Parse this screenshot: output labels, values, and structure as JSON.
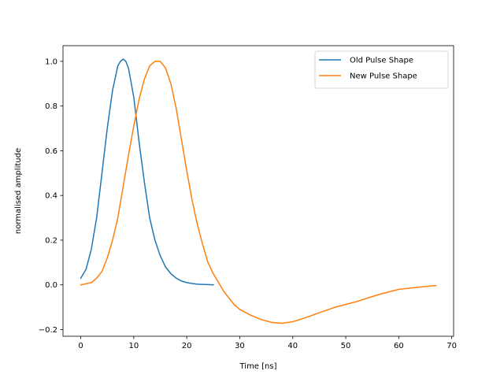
{
  "chart_data": {
    "type": "line",
    "title": "",
    "xlabel": "Time [ns]",
    "ylabel": "normalised amplitude",
    "xlim": [
      -3.35,
      70.35
    ],
    "ylim": [
      -0.23,
      1.07
    ],
    "xticks": [
      0,
      10,
      20,
      30,
      40,
      50,
      60,
      70
    ],
    "yticks": [
      -0.2,
      0.0,
      0.2,
      0.4,
      0.6,
      0.8,
      1.0
    ],
    "xtick_labels": [
      "0",
      "10",
      "20",
      "30",
      "40",
      "50",
      "60",
      "70"
    ],
    "ytick_labels": [
      "−0.2",
      "0.0",
      "0.2",
      "0.4",
      "0.6",
      "0.8",
      "1.0"
    ],
    "grid": false,
    "legend_position": "top-right",
    "series": [
      {
        "name": "Old Pulse Shape",
        "color": "#1f77b4",
        "x": [
          0,
          1,
          2,
          3,
          4,
          5,
          6,
          7,
          7.5,
          8,
          8.5,
          9,
          10,
          11,
          12,
          13,
          14,
          15,
          16,
          17,
          18,
          19,
          20,
          21,
          22,
          23,
          24,
          25
        ],
        "y": [
          0.03,
          0.07,
          0.16,
          0.3,
          0.5,
          0.7,
          0.87,
          0.98,
          1.0,
          1.01,
          1.0,
          0.97,
          0.84,
          0.64,
          0.46,
          0.3,
          0.2,
          0.13,
          0.08,
          0.05,
          0.03,
          0.017,
          0.01,
          0.006,
          0.003,
          0.002,
          0.001,
          0.0
        ]
      },
      {
        "name": "New Pulse Shape",
        "color": "#ff7f0e",
        "x": [
          0,
          2,
          3,
          4,
          5,
          6,
          7,
          8,
          9,
          10,
          11,
          12,
          13,
          14,
          15,
          16,
          17,
          18,
          19,
          20,
          21,
          22,
          23,
          24,
          25,
          26,
          27,
          28,
          29,
          30,
          32,
          34,
          36,
          38,
          40,
          42,
          45,
          48,
          52,
          56,
          60,
          64,
          67
        ],
        "y": [
          0.0,
          0.01,
          0.03,
          0.06,
          0.12,
          0.2,
          0.3,
          0.44,
          0.58,
          0.71,
          0.83,
          0.92,
          0.98,
          1.0,
          1.0,
          0.97,
          0.9,
          0.79,
          0.65,
          0.51,
          0.38,
          0.27,
          0.18,
          0.1,
          0.05,
          0.01,
          -0.03,
          -0.06,
          -0.09,
          -0.11,
          -0.135,
          -0.155,
          -0.168,
          -0.172,
          -0.165,
          -0.15,
          -0.125,
          -0.1,
          -0.075,
          -0.045,
          -0.02,
          -0.01,
          -0.003
        ]
      }
    ]
  }
}
